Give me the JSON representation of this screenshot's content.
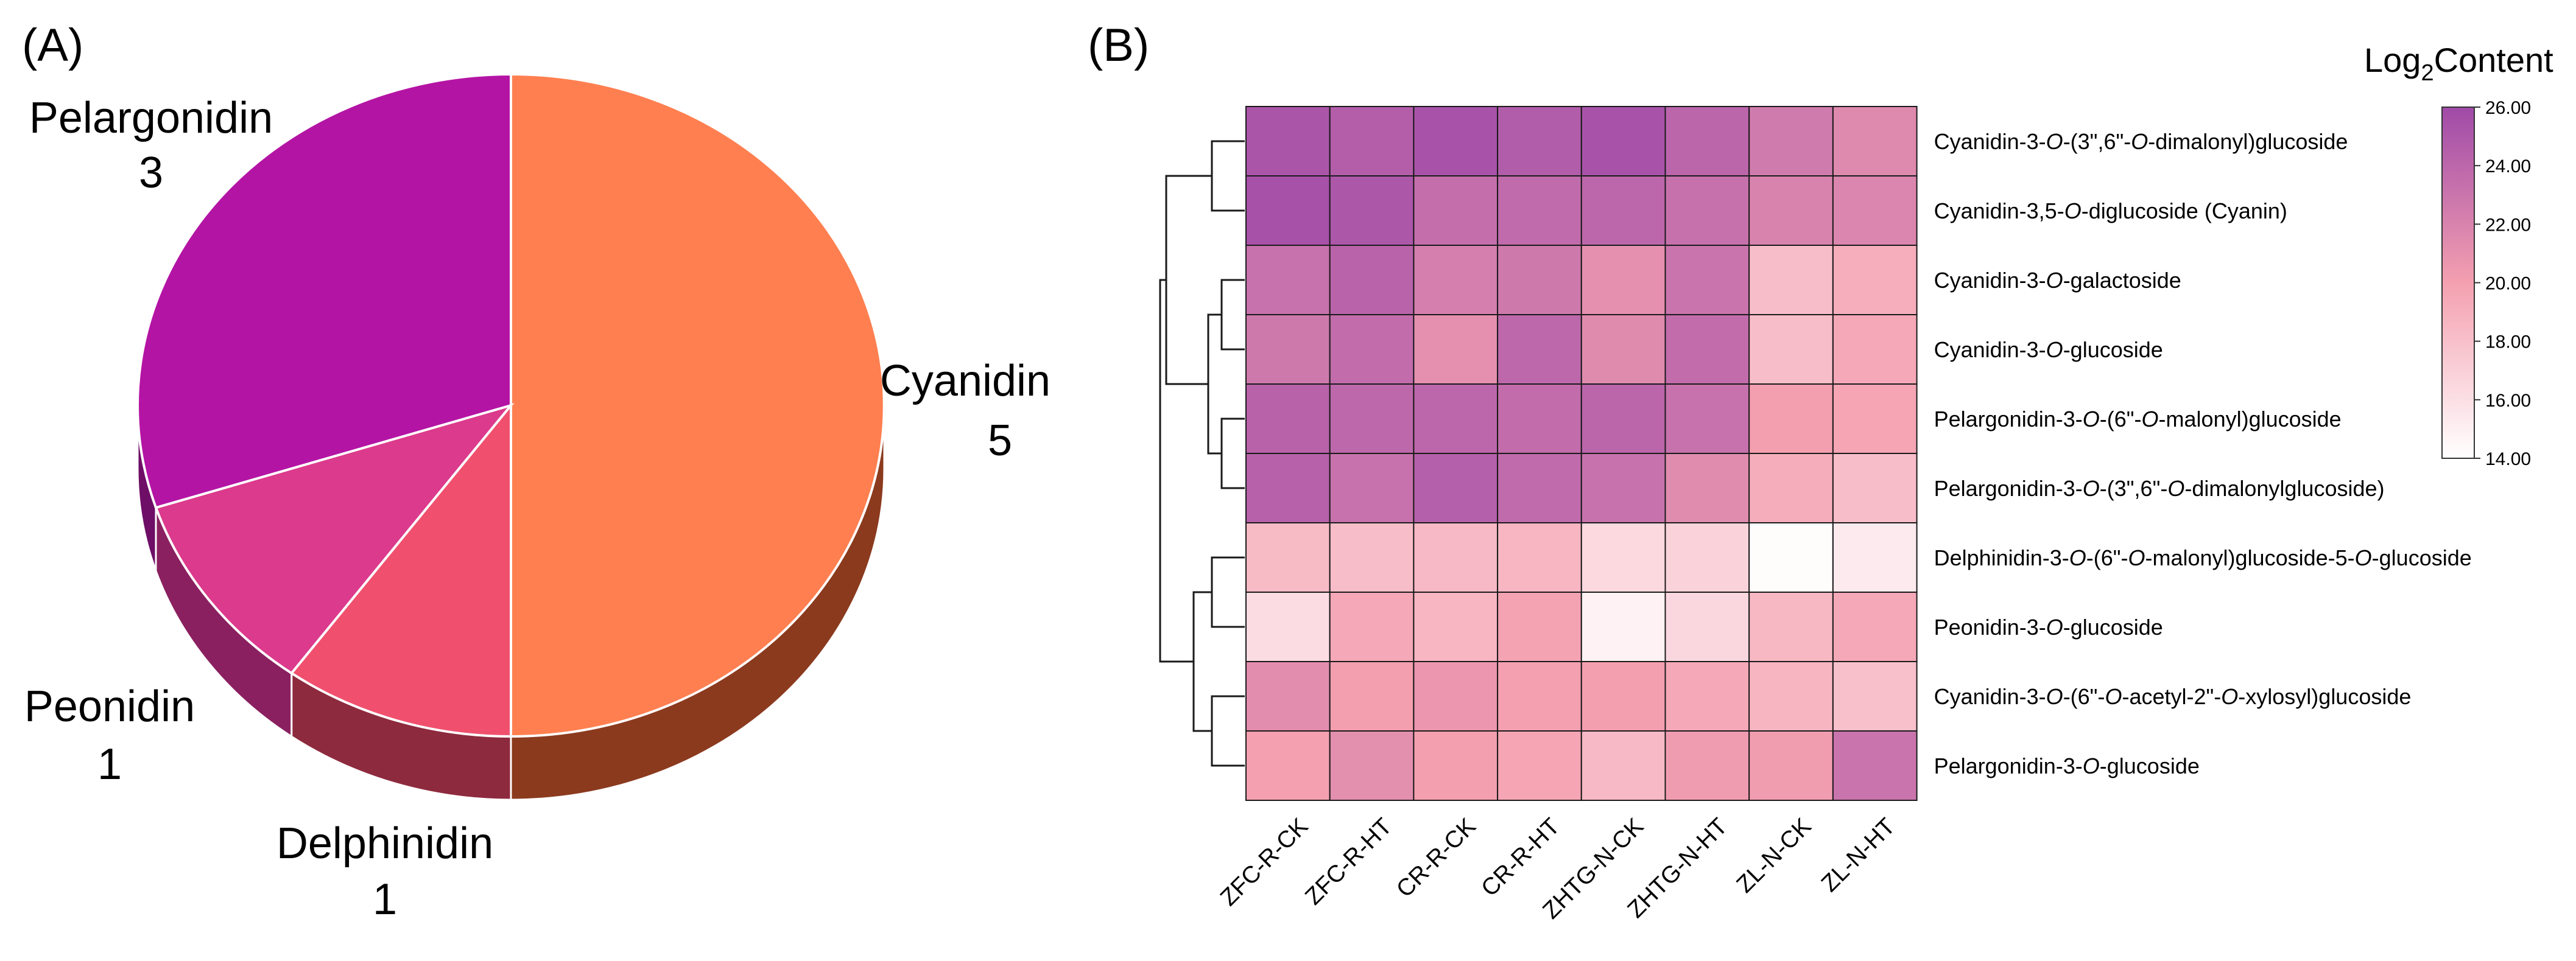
{
  "panels": {
    "a_label": "(A)",
    "b_label": "(B)"
  },
  "chart_data": [
    {
      "type": "pie",
      "slices": [
        {
          "label": "Cyanidin",
          "value": 5,
          "color": "#FF7F50",
          "side_color": "#8B3A1E"
        },
        {
          "label": "Delphinidin",
          "value": 1,
          "color": "#F0506E",
          "side_color": "#8E2A3E"
        },
        {
          "label": "Peonidin",
          "value": 1,
          "color": "#DC3A8C",
          "side_color": "#8A2060"
        },
        {
          "label": "Pelargonidin",
          "value": 3,
          "color": "#B414A4",
          "side_color": "#6E0E66"
        }
      ]
    },
    {
      "type": "heatmap",
      "columns": [
        "ZFC-R-CK",
        "ZFC-R-HT",
        "CR-R-CK",
        "CR-R-HT",
        "ZHTG-N-CK",
        "ZHTG-N-HT",
        "ZL-N-CK",
        "ZL-N-HT"
      ],
      "rows": [
        {
          "segments": [
            "Cyanidin-3-",
            "O",
            "-(3\",6\"-",
            "O",
            "-dimalonyl)glucoside"
          ]
        },
        {
          "segments": [
            "Cyanidin-3,5-",
            "O",
            "-diglucoside (Cyanin)"
          ]
        },
        {
          "segments": [
            "Cyanidin-3-",
            "O",
            "-galactoside"
          ]
        },
        {
          "segments": [
            "Cyanidin-3-",
            "O",
            "-glucoside"
          ]
        },
        {
          "segments": [
            "Pelargonidin-3-",
            "O",
            "-(6\"-",
            "O",
            "-malonyl)glucoside"
          ]
        },
        {
          "segments": [
            "Pelargonidin-3-",
            "O",
            "-(3\",6\"-",
            "O",
            "-dimalonylglucoside)"
          ]
        },
        {
          "segments": [
            "Delphinidin-3-",
            "O",
            "-(6\"-",
            "O",
            "-malonyl)glucoside-5-",
            "O",
            "-glucoside"
          ]
        },
        {
          "segments": [
            "Peonidin-3-",
            "O",
            "-glucoside"
          ]
        },
        {
          "segments": [
            "Cyanidin-3-",
            "O",
            "-(6\"-",
            "O",
            "-acetyl-2\"-",
            "O",
            "-xylosyl)glucoside"
          ]
        },
        {
          "segments": [
            "Pelargonidin-3-",
            "O",
            "-glucoside"
          ]
        }
      ],
      "values": [
        [
          25.2,
          24.6,
          25.4,
          24.7,
          25.4,
          24.1,
          22.6,
          21.6
        ],
        [
          25.5,
          25.1,
          23.4,
          23.7,
          24.0,
          23.3,
          22.0,
          21.8
        ],
        [
          23.2,
          24.2,
          22.3,
          22.7,
          21.1,
          23.1,
          18.1,
          19.1
        ],
        [
          22.7,
          23.6,
          21.1,
          23.9,
          21.5,
          23.6,
          18.2,
          19.5
        ],
        [
          24.3,
          23.9,
          24.0,
          23.6,
          24.1,
          23.2,
          20.1,
          19.7
        ],
        [
          24.4,
          23.2,
          24.5,
          23.7,
          23.2,
          21.4,
          19.2,
          18.2
        ],
        [
          18.3,
          18.1,
          18.4,
          18.6,
          16.4,
          16.8,
          14.2,
          15.3
        ],
        [
          16.2,
          19.5,
          18.6,
          19.8,
          14.8,
          16.5,
          18.5,
          19.5
        ],
        [
          21.3,
          20.1,
          20.6,
          20.0,
          20.1,
          19.5,
          18.7,
          18.0
        ],
        [
          20.0,
          21.2,
          20.1,
          19.7,
          18.4,
          20.3,
          20.2,
          23.1
        ]
      ],
      "legend": {
        "title_main": "Log",
        "title_sub": "2",
        "title_rest": "Content",
        "min": 14.0,
        "max": 26.0,
        "ticks": [
          "26.00",
          "24.00",
          "22.00",
          "20.00",
          "18.00",
          "16.00",
          "14.00"
        ],
        "colors": [
          "#FFFFFF",
          "#F4A0B0",
          "#A04AA8"
        ]
      },
      "dendrogram_groups": [
        [
          0,
          1
        ],
        [
          2,
          3
        ],
        [
          4,
          5
        ],
        [
          6,
          7
        ],
        [
          8,
          9
        ]
      ]
    }
  ]
}
